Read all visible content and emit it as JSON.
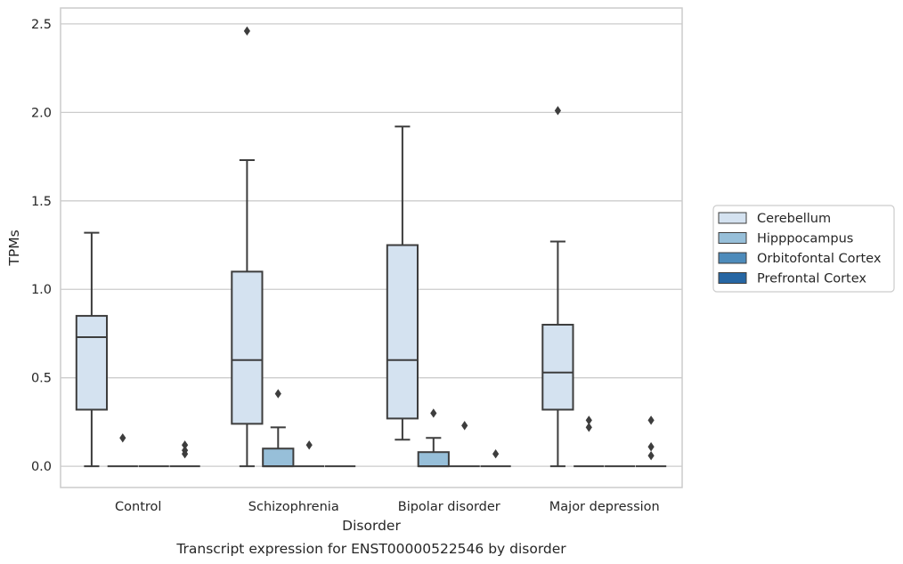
{
  "chart_data": {
    "type": "box",
    "title": "Transcript expression for ENST00000522546 by disorder",
    "xlabel": "Disorder",
    "ylabel": "TPMs",
    "ylim": [
      -0.12,
      2.59
    ],
    "yticks": [
      "0.0",
      "0.5",
      "1.0",
      "1.5",
      "2.0",
      "2.5"
    ],
    "grid": "horizontal",
    "legend_position": "right",
    "categories": [
      "Control",
      "Schizophrenia",
      "Bipolar disorder",
      "Major depression"
    ],
    "colors": {
      "Cerebellum": "#d4e2f0",
      "Hipppocampus": "#97bfd9",
      "Orbitofontal Cortex": "#4d8bbb",
      "Prefrontal Cortex": "#2666a3",
      "grid": "#cccccc",
      "frame": "#cccccc",
      "edge": "#3d3d3d",
      "text": "#262626"
    },
    "series": [
      {
        "name": "Cerebellum",
        "boxes": [
          {
            "q1": 0.32,
            "median": 0.73,
            "q3": 0.85,
            "whisker_low": 0.0,
            "whisker_high": 1.32,
            "outliers": []
          },
          {
            "q1": 0.24,
            "median": 0.6,
            "q3": 1.1,
            "whisker_low": 0.0,
            "whisker_high": 1.73,
            "outliers": [
              2.46
            ]
          },
          {
            "q1": 0.27,
            "median": 0.6,
            "q3": 1.25,
            "whisker_low": 0.15,
            "whisker_high": 1.92,
            "outliers": []
          },
          {
            "q1": 0.32,
            "median": 0.53,
            "q3": 0.8,
            "whisker_low": 0.0,
            "whisker_high": 1.27,
            "outliers": [
              2.01
            ]
          }
        ]
      },
      {
        "name": "Hipppocampus",
        "boxes": [
          {
            "q1": 0.0,
            "median": 0.0,
            "q3": 0.0,
            "whisker_low": 0.0,
            "whisker_high": 0.0,
            "outliers": [
              0.16
            ]
          },
          {
            "q1": 0.0,
            "median": 0.0,
            "q3": 0.1,
            "whisker_low": 0.0,
            "whisker_high": 0.22,
            "outliers": [
              0.41
            ]
          },
          {
            "q1": 0.0,
            "median": 0.0,
            "q3": 0.08,
            "whisker_low": 0.0,
            "whisker_high": 0.16,
            "outliers": [
              0.3
            ]
          },
          {
            "q1": 0.0,
            "median": 0.0,
            "q3": 0.0,
            "whisker_low": 0.0,
            "whisker_high": 0.0,
            "outliers": [
              0.22,
              0.26
            ]
          }
        ]
      },
      {
        "name": "Orbitofontal Cortex",
        "boxes": [
          {
            "q1": 0.0,
            "median": 0.0,
            "q3": 0.0,
            "whisker_low": 0.0,
            "whisker_high": 0.0,
            "outliers": []
          },
          {
            "q1": 0.0,
            "median": 0.0,
            "q3": 0.0,
            "whisker_low": 0.0,
            "whisker_high": 0.0,
            "outliers": [
              0.12
            ]
          },
          {
            "q1": 0.0,
            "median": 0.0,
            "q3": 0.0,
            "whisker_low": 0.0,
            "whisker_high": 0.0,
            "outliers": [
              0.23
            ]
          },
          {
            "q1": 0.0,
            "median": 0.0,
            "q3": 0.0,
            "whisker_low": 0.0,
            "whisker_high": 0.0,
            "outliers": []
          }
        ]
      },
      {
        "name": "Prefrontal Cortex",
        "boxes": [
          {
            "q1": 0.0,
            "median": 0.0,
            "q3": 0.0,
            "whisker_low": 0.0,
            "whisker_high": 0.0,
            "outliers": [
              0.07,
              0.09,
              0.12
            ]
          },
          {
            "q1": 0.0,
            "median": 0.0,
            "q3": 0.0,
            "whisker_low": 0.0,
            "whisker_high": 0.0,
            "outliers": []
          },
          {
            "q1": 0.0,
            "median": 0.0,
            "q3": 0.0,
            "whisker_low": 0.0,
            "whisker_high": 0.0,
            "outliers": [
              0.07
            ]
          },
          {
            "q1": 0.0,
            "median": 0.0,
            "q3": 0.0,
            "whisker_low": 0.0,
            "whisker_high": 0.0,
            "outliers": [
              0.06,
              0.11,
              0.26
            ]
          }
        ]
      }
    ]
  }
}
